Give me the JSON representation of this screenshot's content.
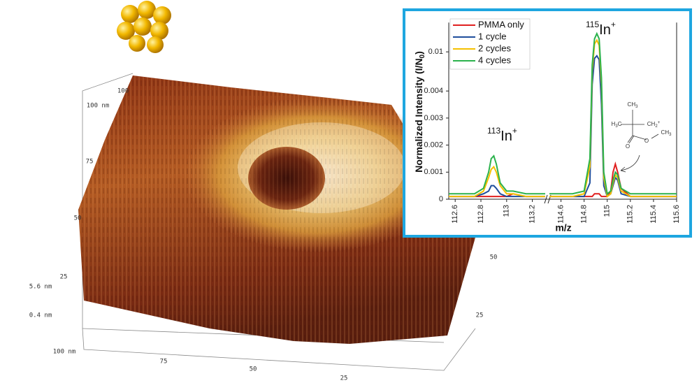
{
  "afm": {
    "labels": [
      "100 nm",
      "100",
      "75",
      "50",
      "25",
      "5.6 nm",
      "0.4 nm",
      "100 nm",
      "75",
      "50",
      "25",
      "50",
      "25"
    ]
  },
  "inset": {
    "ylabel": {
      "text": "Normalized Intensity (I/N",
      "sub": "0",
      "end": ")"
    },
    "xlabel": "m/z",
    "molecule": [
      {
        "text": "CH",
        "sub": "3"
      },
      {
        "text": "H",
        "sub": "3",
        "end": "C"
      },
      {
        "text": "CH",
        "sub": "2",
        "sup": "+"
      },
      {
        "text": "O"
      },
      {
        "text": "O"
      },
      {
        "text": "CH",
        "sub": "3"
      }
    ]
  },
  "chart_data": [
    {
      "type": "line",
      "annotation": {
        "mass": "113",
        "ion": "In",
        "charge": "+"
      },
      "x": [
        112.55,
        112.65,
        112.75,
        112.82,
        112.86,
        112.88,
        112.9,
        112.92,
        112.95,
        113.0,
        113.05,
        113.15,
        113.3
      ],
      "xlim": [
        112.55,
        113.3
      ],
      "xticks": [
        112.6,
        112.8,
        113,
        113.2
      ],
      "ylim": [
        0,
        0.0145
      ],
      "yticks": [
        0,
        0.001,
        0.002,
        0.003,
        0.004,
        0.01
      ],
      "legend": "upper left",
      "series": [
        {
          "name": "PMMA only",
          "color": "#e02020",
          "values": [
            0.0001,
            0.0001,
            0.0001,
            0.0001,
            0.0001,
            0.0001,
            0.0001,
            0.0001,
            0.0001,
            0.0001,
            0.0002,
            0.0001,
            0.0001
          ]
        },
        {
          "name": "1 cycle",
          "color": "#1f4e9c",
          "values": [
            0.0001,
            0.0001,
            0.0001,
            0.0002,
            0.0003,
            0.0005,
            0.0005,
            0.0004,
            0.0002,
            0.0001,
            0.0001,
            0.0001,
            0.0001
          ]
        },
        {
          "name": "2 cycles",
          "color": "#f5c000",
          "values": [
            0.0001,
            0.0001,
            0.0001,
            0.0003,
            0.0008,
            0.0011,
            0.0012,
            0.001,
            0.0005,
            0.0002,
            0.0002,
            0.0001,
            0.0001
          ]
        },
        {
          "name": "4 cycles",
          "color": "#2bb24c",
          "values": [
            0.0002,
            0.0002,
            0.0002,
            0.0004,
            0.001,
            0.0015,
            0.0016,
            0.0013,
            0.0006,
            0.0003,
            0.0003,
            0.0002,
            0.0002
          ]
        }
      ]
    },
    {
      "type": "line",
      "annotation": {
        "mass": "115",
        "ion": "In",
        "charge": "+"
      },
      "x": [
        114.5,
        114.7,
        114.8,
        114.85,
        114.87,
        114.89,
        114.91,
        114.93,
        114.95,
        114.97,
        115.0,
        115.03,
        115.05,
        115.07,
        115.09,
        115.12,
        115.2,
        115.4,
        115.6
      ],
      "xlim": [
        114.5,
        115.6
      ],
      "xticks": [
        114.6,
        114.8,
        115,
        115.2,
        115.4,
        115.6
      ],
      "series": [
        {
          "color": "#e02020",
          "values": [
            0.0001,
            0.0001,
            0.0001,
            0.0001,
            0.0001,
            0.0002,
            0.0002,
            0.0002,
            0.0001,
            0.0001,
            0.0001,
            0.0003,
            0.001,
            0.0013,
            0.001,
            0.0004,
            0.0001,
            0.0001,
            0.0001
          ]
        },
        {
          "color": "#1f4e9c",
          "values": [
            0.0001,
            0.0001,
            0.0001,
            0.0006,
            0.005,
            0.009,
            0.0094,
            0.0088,
            0.0035,
            0.0005,
            0.0001,
            0.0002,
            0.0005,
            0.0008,
            0.0007,
            0.0002,
            0.0001,
            0.0001,
            0.0001
          ]
        },
        {
          "color": "#f5c000",
          "values": [
            0.0001,
            0.0001,
            0.0002,
            0.0012,
            0.007,
            0.0112,
            0.0118,
            0.011,
            0.005,
            0.0008,
            0.0001,
            0.0002,
            0.0006,
            0.0009,
            0.0008,
            0.0003,
            0.0001,
            0.0001,
            0.0001
          ]
        },
        {
          "color": "#2bb24c",
          "values": [
            0.0002,
            0.0002,
            0.0003,
            0.0015,
            0.008,
            0.012,
            0.0128,
            0.012,
            0.006,
            0.001,
            0.0002,
            0.0003,
            0.0007,
            0.001,
            0.0009,
            0.0004,
            0.0002,
            0.0002,
            0.0002
          ]
        }
      ]
    }
  ]
}
